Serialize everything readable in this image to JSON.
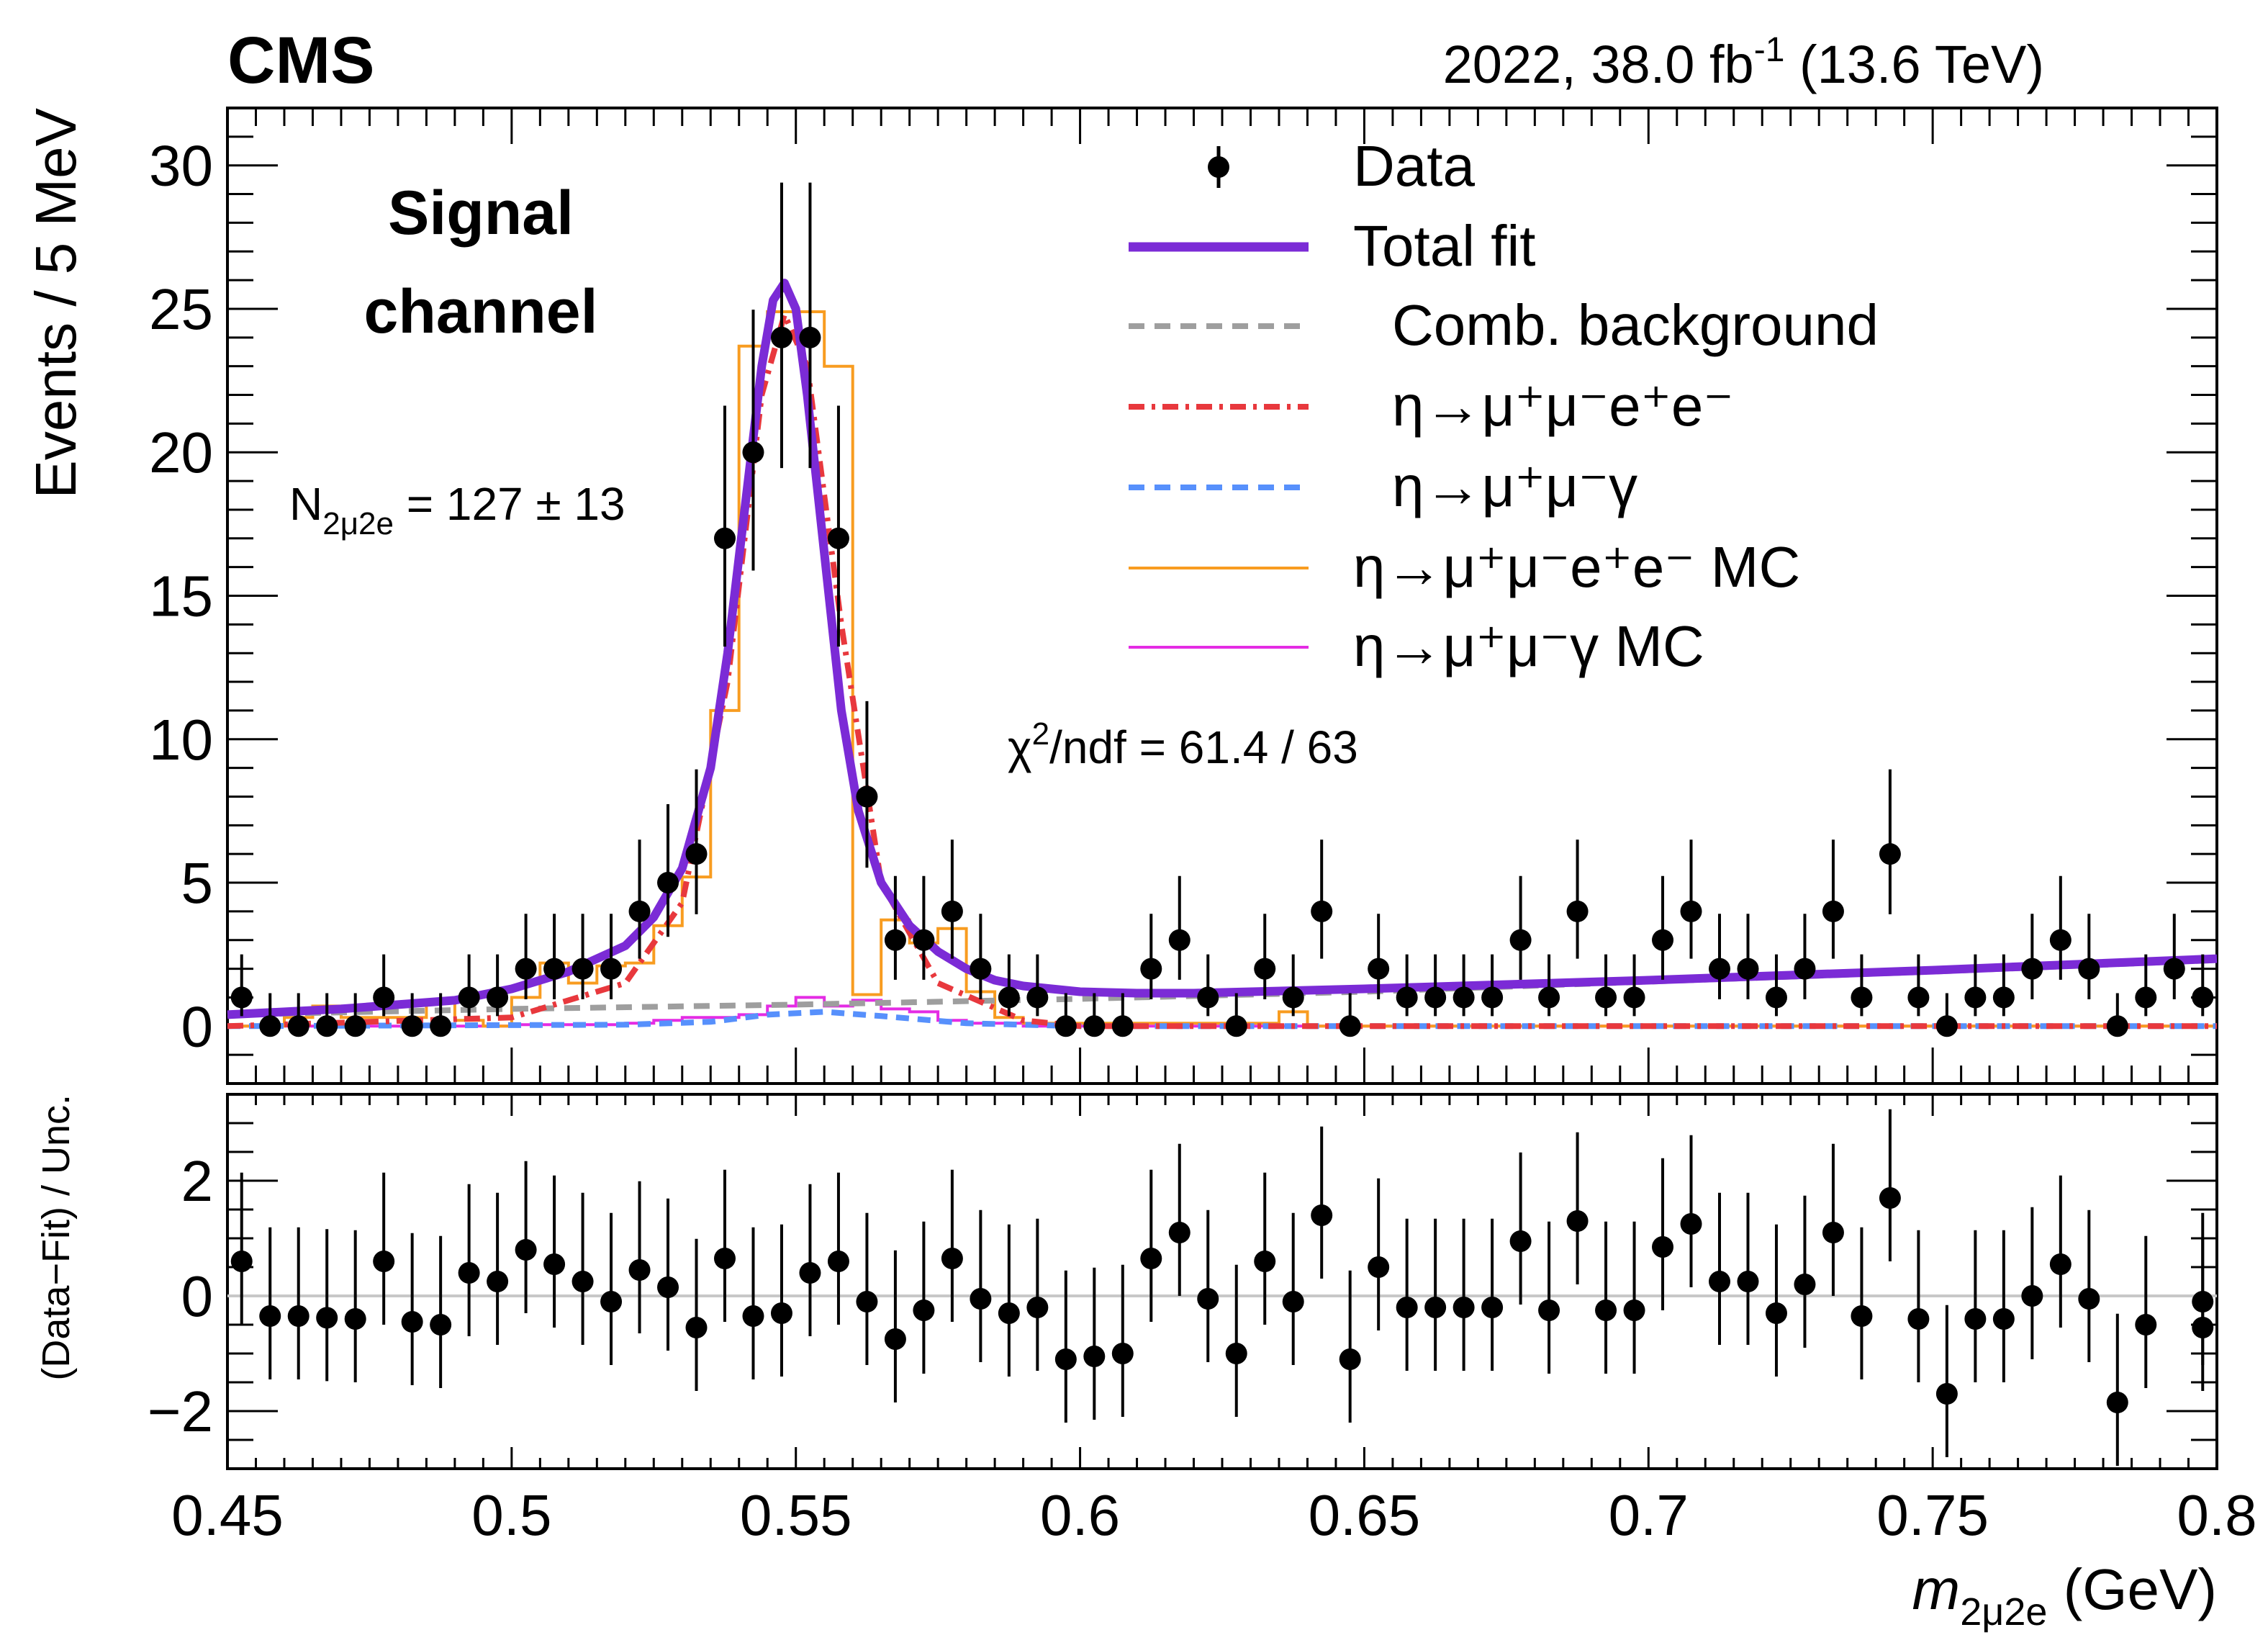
{
  "header": {
    "experiment": "CMS",
    "lumi_prefix": "2022, 38.0 fb",
    "lumi_exp": "-1",
    "lumi_suffix": " (13.6 TeV)"
  },
  "annotations": {
    "channel_line1": "Signal",
    "channel_line2": "channel",
    "yield_base": "N",
    "yield_sub": "2μ2e",
    "yield_value": " = 127 ± 13",
    "chi2_base": "χ",
    "chi2_exp": "2",
    "chi2_value": "/ndf = 61.4 / 63"
  },
  "legend": {
    "items": [
      {
        "label": "Data",
        "style": "marker",
        "color": "#000000"
      },
      {
        "label": "Total fit",
        "style": "solid-thick",
        "color": "#7b2bd6"
      },
      {
        "label": "Comb. background",
        "style": "dashed",
        "color": "#9e9e9e"
      },
      {
        "label": "η→μ⁺μ⁻e⁺e⁻",
        "style": "dash-dot",
        "color": "#e8383d"
      },
      {
        "label": "η→μ⁺μ⁻γ",
        "style": "dashed",
        "color": "#5790fc"
      },
      {
        "label": "η→μ⁺μ⁻e⁺e⁻ MC",
        "style": "step",
        "color": "#f89c20"
      },
      {
        "label": "η→μ⁺μ⁻γ MC",
        "style": "step",
        "color": "#e42ce4"
      }
    ]
  },
  "chart_data": {
    "type": "scatter",
    "xlabel_main": "m",
    "xlabel_sub": "2μ2e",
    "xlabel_unit": " (GeV)",
    "ylabel": "Events / 5 MeV",
    "ratio_ylabel": "(Data−Fit) / Unc.",
    "xlim": [
      0.45,
      0.8
    ],
    "ylim": [
      -2,
      32
    ],
    "ratio_ylim": [
      -3,
      3.5
    ],
    "x_ticks": [
      0.45,
      0.5,
      0.55,
      0.6,
      0.65,
      0.7,
      0.75,
      0.8
    ],
    "x_tick_labels": [
      "0.45",
      "0.5",
      "0.55",
      "0.6",
      "0.65",
      "0.7",
      "0.75",
      "0.8"
    ],
    "y_ticks": [
      0,
      5,
      10,
      15,
      20,
      25,
      30
    ],
    "y_tick_labels": [
      "0",
      "5",
      "10",
      "15",
      "20",
      "25",
      "30"
    ],
    "ratio_y_ticks": [
      -2,
      0,
      2
    ],
    "ratio_y_tick_labels": [
      "−2",
      "0",
      "2"
    ],
    "bin_width": 0.005,
    "series": [
      {
        "name": "Data",
        "type": "points",
        "x": [
          0.4525,
          0.4575,
          0.4625,
          0.4675,
          0.4725,
          0.4775,
          0.4825,
          0.4875,
          0.4925,
          0.4975,
          0.5025,
          0.5075,
          0.5125,
          0.5175,
          0.5225,
          0.5275,
          0.5325,
          0.5375,
          0.5425,
          0.5475,
          0.5525,
          0.5575,
          0.5625,
          0.5675,
          0.5725,
          0.5775,
          0.5825,
          0.5875,
          0.5925,
          0.5975,
          0.6025,
          0.6075,
          0.6125,
          0.6175,
          0.6225,
          0.6275,
          0.6325,
          0.6375,
          0.6425,
          0.6475,
          0.6525,
          0.6575,
          0.6625,
          0.6675,
          0.6725,
          0.6775,
          0.6825,
          0.6875,
          0.6925,
          0.6975,
          0.7025,
          0.7075,
          0.7125,
          0.7175,
          0.7225,
          0.7275,
          0.7325,
          0.7375,
          0.7425,
          0.7475,
          0.7525,
          0.7575,
          0.7625,
          0.7675,
          0.7725,
          0.7775,
          0.7825,
          0.7875,
          0.7925,
          0.7975
        ],
        "y": [
          1,
          0,
          0,
          0,
          0,
          1,
          0,
          0,
          1,
          1,
          2,
          2,
          2,
          2,
          4,
          5,
          6,
          17,
          20,
          24,
          24,
          17,
          8,
          3,
          3,
          4,
          2,
          1,
          1,
          0,
          0,
          0,
          2,
          3,
          1,
          0,
          2,
          1,
          4,
          0,
          2,
          1,
          1,
          1,
          1,
          3,
          1,
          4,
          1,
          1,
          3,
          4,
          2,
          2,
          1,
          2,
          4,
          1,
          6,
          1,
          0,
          1,
          1,
          2,
          3,
          2,
          0,
          1,
          2,
          1
        ]
      },
      {
        "name": "Total fit",
        "type": "line",
        "x": [
          0.45,
          0.47,
          0.49,
          0.5,
          0.51,
          0.52,
          0.525,
          0.53,
          0.535,
          0.538,
          0.541,
          0.544,
          0.546,
          0.548,
          0.55,
          0.552,
          0.555,
          0.558,
          0.561,
          0.565,
          0.57,
          0.575,
          0.58,
          0.585,
          0.59,
          0.6,
          0.61,
          0.62,
          0.65,
          0.7,
          0.75,
          0.8
        ],
        "y": [
          0.4,
          0.6,
          0.9,
          1.3,
          1.9,
          2.8,
          3.8,
          5.5,
          9,
          13,
          18,
          23,
          25.3,
          25.9,
          25,
          22,
          16.5,
          11,
          7.5,
          5,
          3.5,
          2.6,
          2,
          1.6,
          1.4,
          1.2,
          1.15,
          1.15,
          1.3,
          1.6,
          1.95,
          2.35
        ]
      },
      {
        "name": "Comb. background",
        "type": "line",
        "x": [
          0.45,
          0.5,
          0.55,
          0.6,
          0.65,
          0.7,
          0.75,
          0.8
        ],
        "y": [
          0.4,
          0.6,
          0.75,
          0.95,
          1.2,
          1.55,
          1.9,
          2.3
        ]
      },
      {
        "name": "η→μ⁺μ⁻e⁺e⁻",
        "type": "line",
        "x": [
          0.45,
          0.5,
          0.52,
          0.53,
          0.538,
          0.544,
          0.548,
          0.552,
          0.558,
          0.565,
          0.575,
          0.59,
          0.6,
          0.8
        ],
        "y": [
          0,
          0.3,
          1.5,
          4.3,
          12,
          22,
          24.8,
          23,
          14,
          5,
          1.5,
          0.2,
          0,
          0
        ]
      },
      {
        "name": "η→μ⁺μ⁻γ",
        "type": "line",
        "x": [
          0.45,
          0.52,
          0.535,
          0.545,
          0.555,
          0.565,
          0.58,
          0.6,
          0.8
        ],
        "y": [
          0,
          0.05,
          0.15,
          0.4,
          0.5,
          0.35,
          0.1,
          0,
          0
        ]
      },
      {
        "name": "η→μ⁺μ⁻e⁺e⁻ MC",
        "type": "step",
        "edges": [
          0.45,
          0.46,
          0.465,
          0.47,
          0.485,
          0.49,
          0.495,
          0.5,
          0.505,
          0.51,
          0.515,
          0.52,
          0.525,
          0.53,
          0.535,
          0.54,
          0.545,
          0.55,
          0.555,
          0.56,
          0.565,
          0.57,
          0.575,
          0.58,
          0.585,
          0.59,
          0.635,
          0.64,
          0.8
        ],
        "values": [
          0,
          0.3,
          0.7,
          0.3,
          0.8,
          0.2,
          0,
          1,
          2.2,
          1.5,
          2.1,
          2.2,
          3.5,
          5.2,
          11,
          23.7,
          24.9,
          24.9,
          23,
          1.1,
          3.7,
          2.9,
          3.4,
          1.2,
          0.3,
          0.1,
          0.5,
          0
        ]
      },
      {
        "name": "η→μ⁺μ⁻γ MC",
        "type": "step",
        "edges": [
          0.45,
          0.5,
          0.515,
          0.52,
          0.525,
          0.53,
          0.54,
          0.545,
          0.55,
          0.555,
          0.56,
          0.565,
          0.57,
          0.575,
          0.58,
          0.59,
          0.8
        ],
        "values": [
          0,
          0.05,
          0.05,
          0.1,
          0.2,
          0.3,
          0.4,
          0.7,
          1.0,
          0.7,
          0.9,
          0.6,
          0.5,
          0.2,
          0.1,
          0
        ]
      },
      {
        "name": "(Data−Fit) / Unc.",
        "type": "ratio-points",
        "x": [
          0.4525,
          0.4575,
          0.4625,
          0.4675,
          0.4725,
          0.4775,
          0.4825,
          0.4875,
          0.4925,
          0.4975,
          0.5025,
          0.5075,
          0.5125,
          0.5175,
          0.5225,
          0.5275,
          0.5325,
          0.5375,
          0.5425,
          0.5475,
          0.5525,
          0.5575,
          0.5625,
          0.5675,
          0.5725,
          0.5775,
          0.5825,
          0.5875,
          0.5925,
          0.5975,
          0.6025,
          0.6075,
          0.6125,
          0.6175,
          0.6225,
          0.6275,
          0.6325,
          0.6375,
          0.6425,
          0.6475,
          0.6525,
          0.6575,
          0.6625,
          0.6675,
          0.6725,
          0.6775,
          0.6825,
          0.6875,
          0.6925,
          0.6975,
          0.7025,
          0.7075,
          0.7125,
          0.7175,
          0.7225,
          0.7275,
          0.7325,
          0.7375,
          0.7425,
          0.7475,
          0.7525,
          0.7575,
          0.7625,
          0.7675,
          0.7725,
          0.7775,
          0.7825,
          0.7875,
          0.7975,
          0.7975
        ],
        "y": [
          0.6,
          -0.35,
          -0.35,
          -0.38,
          -0.4,
          0.6,
          -0.45,
          -0.5,
          0.4,
          0.25,
          0.8,
          0.55,
          0.25,
          -0.1,
          0.45,
          0.15,
          -0.55,
          0.65,
          -0.35,
          -0.3,
          0.4,
          0.6,
          -0.1,
          -0.75,
          -0.25,
          0.65,
          -0.05,
          -0.3,
          -0.2,
          -1.1,
          -1.05,
          -1.0,
          0.65,
          1.1,
          -0.05,
          -1.0,
          0.6,
          -0.1,
          1.4,
          -1.1,
          0.5,
          -0.2,
          -0.2,
          -0.2,
          -0.2,
          0.95,
          -0.25,
          1.3,
          -0.25,
          -0.25,
          0.85,
          1.25,
          0.25,
          0.25,
          -0.3,
          0.2,
          1.1,
          -0.35,
          1.7,
          -0.4,
          -1.7,
          -0.4,
          -0.4,
          0,
          0.55,
          -0.05,
          -1.85,
          -0.5,
          -0.1,
          -0.55
        ]
      }
    ],
    "colors": {
      "total_fit": "#7b2bd6",
      "comb_bkg": "#9e9e9e",
      "signal": "#e8383d",
      "gamma": "#5790fc",
      "signal_mc": "#f89c20",
      "gamma_mc": "#e42ce4",
      "ratio_zero_line": "#c8c8c8"
    }
  }
}
